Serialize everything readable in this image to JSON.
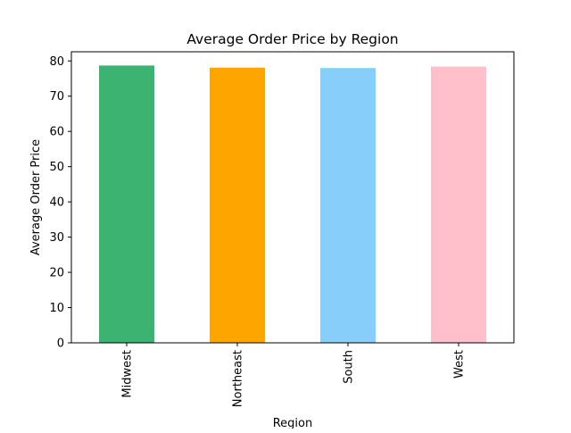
{
  "chart_data": {
    "type": "bar",
    "title": "Average Order Price by Region",
    "xlabel": "Region",
    "ylabel": "Average Order Price",
    "categories": [
      "Midwest",
      "Northeast",
      "South",
      "West"
    ],
    "values": [
      78.7,
      78.1,
      78.0,
      78.4
    ],
    "colors": [
      "#3cb371",
      "#ffa500",
      "#87cefa",
      "#ffc0cb"
    ],
    "ylim": [
      0,
      82.6
    ],
    "yticks": [
      0,
      10,
      20,
      30,
      40,
      50,
      60,
      70,
      80
    ],
    "grid": false,
    "legend": "none"
  }
}
